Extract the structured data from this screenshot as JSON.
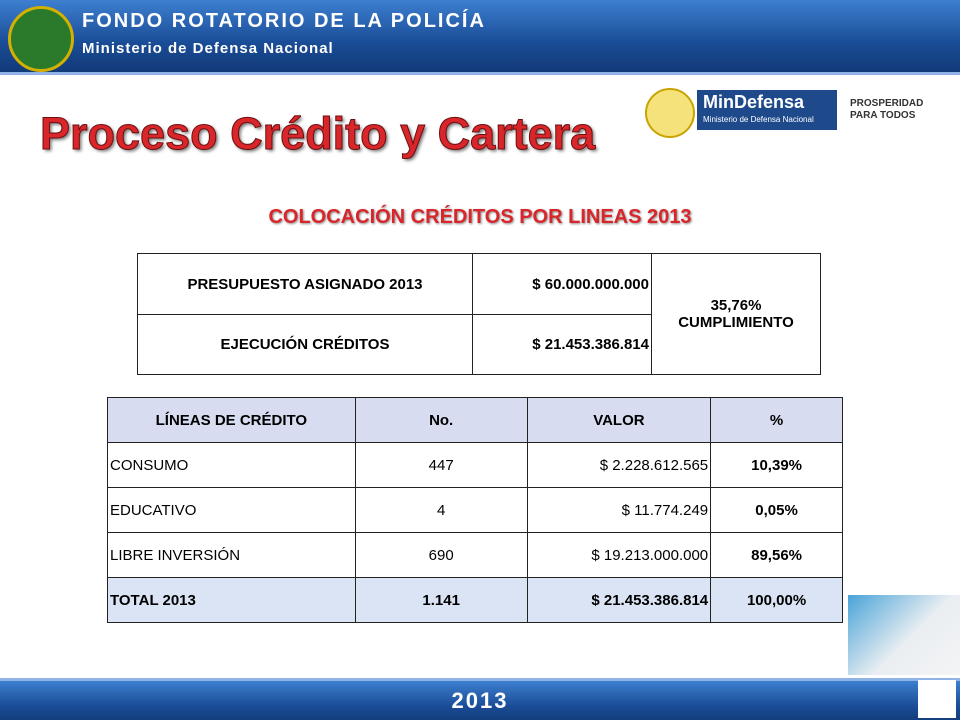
{
  "header": {
    "title": "FONDO ROTATORIO DE LA POLICÍA",
    "subtitle": "Ministerio de Defensa Nacional"
  },
  "logos": {
    "brand": "MinDefensa",
    "brand_sub": "Ministerio de Defensa Nacional",
    "slogan": [
      "PROSPERIDAD",
      "PARA TODOS"
    ]
  },
  "title": "Proceso Crédito y Cartera",
  "subtitle": "COLOCACIÓN CRÉDITOS POR LINEAS 2013",
  "summary": {
    "rows": [
      [
        "PRESUPUESTO ASIGNADO 2013",
        "$ 60.000.000.000"
      ],
      [
        "EJECUCIÓN CRÉDITOS",
        "$ 21.453.386.814"
      ]
    ],
    "compliance": [
      "35,76%",
      "CUMPLIMIENTO"
    ]
  },
  "table": {
    "header": [
      "LÍNEAS DE CRÉDITO",
      "No.",
      "VALOR",
      "%"
    ],
    "rows": [
      [
        "CONSUMO",
        "447",
        "$ 2.228.612.565",
        "10,39%"
      ],
      [
        "EDUCATIVO",
        "4",
        "$ 11.774.249",
        "0,05%"
      ],
      [
        "LIBRE INVERSIÓN",
        "690",
        "$ 19.213.000.000",
        "89,56%"
      ]
    ],
    "total": [
      "TOTAL  2013",
      "1.141",
      "$ 21.453.386.814",
      "100,00%"
    ]
  },
  "footer": "2013"
}
